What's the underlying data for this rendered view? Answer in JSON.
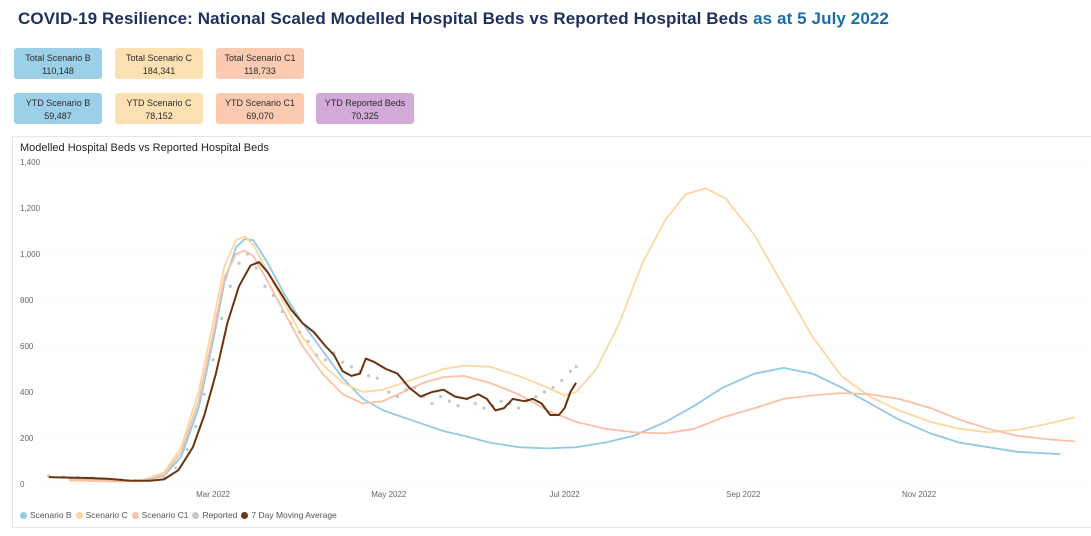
{
  "header": {
    "title_main": "COVID-19 Resilience: National Scaled Modelled Hospital Beds vs Reported Hospital Beds",
    "title_date": "as at 5 July 2022"
  },
  "cards": [
    {
      "label": "Total Scenario B",
      "value": "110,148",
      "color": "#9ccfe8"
    },
    {
      "label": "Total Scenario C",
      "value": "184,341",
      "color": "#fde1b3"
    },
    {
      "label": "Total Scenario C1",
      "value": "118,733",
      "color": "#fbcbb1"
    },
    {
      "label": "YTD Scenario B",
      "value": "59,487",
      "color": "#9ccfe8"
    },
    {
      "label": "YTD Scenario C",
      "value": "78,152",
      "color": "#fde1b3"
    },
    {
      "label": "YTD Scenario C1",
      "value": "69,070",
      "color": "#fbcbb1"
    },
    {
      "label": "YTD Reported Beds",
      "value": "70,325",
      "color": "#d3a9d8"
    }
  ],
  "chart_data": {
    "type": "line",
    "title": "Modelled Hospital Beds vs Reported Hospital Beds",
    "xlabel": "",
    "ylabel": "",
    "xlim": [
      "2022-01-01",
      "2022-12-31"
    ],
    "ylim": [
      0,
      1400
    ],
    "y_ticks": [
      0,
      200,
      400,
      600,
      800,
      1000,
      1200,
      1400
    ],
    "x_ticks": [
      {
        "date": "2022-03-01",
        "label": "Mar 2022"
      },
      {
        "date": "2022-05-01",
        "label": "May 2022"
      },
      {
        "date": "2022-07-01",
        "label": "Jul 2022"
      },
      {
        "date": "2022-09-01",
        "label": "Sep 2022"
      },
      {
        "date": "2022-11-01",
        "label": "Nov 2022"
      }
    ],
    "grid": true,
    "legend_position": "bottom-left",
    "series": [
      {
        "name": "Scenario B",
        "color": "#93c9e3",
        "style": "line",
        "points": [
          [
            "2022-01-10",
            20
          ],
          [
            "2022-01-20",
            18
          ],
          [
            "2022-01-28",
            12
          ],
          [
            "2022-02-05",
            15
          ],
          [
            "2022-02-12",
            35
          ],
          [
            "2022-02-18",
            120
          ],
          [
            "2022-02-24",
            330
          ],
          [
            "2022-03-01",
            620
          ],
          [
            "2022-03-05",
            880
          ],
          [
            "2022-03-09",
            1030
          ],
          [
            "2022-03-12",
            1065
          ],
          [
            "2022-03-15",
            1060
          ],
          [
            "2022-03-20",
            960
          ],
          [
            "2022-03-26",
            820
          ],
          [
            "2022-04-01",
            700
          ],
          [
            "2022-04-08",
            580
          ],
          [
            "2022-04-15",
            460
          ],
          [
            "2022-04-22",
            370
          ],
          [
            "2022-04-29",
            320
          ],
          [
            "2022-05-06",
            290
          ],
          [
            "2022-05-13",
            260
          ],
          [
            "2022-05-20",
            230
          ],
          [
            "2022-05-27",
            210
          ],
          [
            "2022-06-05",
            180
          ],
          [
            "2022-06-15",
            160
          ],
          [
            "2022-06-25",
            155
          ],
          [
            "2022-07-05",
            160
          ],
          [
            "2022-07-15",
            180
          ],
          [
            "2022-07-25",
            210
          ],
          [
            "2022-08-05",
            270
          ],
          [
            "2022-08-15",
            340
          ],
          [
            "2022-08-25",
            420
          ],
          [
            "2022-09-05",
            480
          ],
          [
            "2022-09-15",
            505
          ],
          [
            "2022-09-25",
            480
          ],
          [
            "2022-10-05",
            420
          ],
          [
            "2022-10-15",
            350
          ],
          [
            "2022-10-25",
            280
          ],
          [
            "2022-11-05",
            220
          ],
          [
            "2022-11-15",
            180
          ],
          [
            "2022-11-25",
            160
          ],
          [
            "2022-12-05",
            140
          ],
          [
            "2022-12-20",
            130
          ]
        ]
      },
      {
        "name": "Scenario C",
        "color": "#fdd7a0",
        "style": "line",
        "points": [
          [
            "2022-01-10",
            15
          ],
          [
            "2022-01-20",
            12
          ],
          [
            "2022-01-28",
            10
          ],
          [
            "2022-02-05",
            18
          ],
          [
            "2022-02-12",
            50
          ],
          [
            "2022-02-18",
            160
          ],
          [
            "2022-02-24",
            400
          ],
          [
            "2022-03-01",
            700
          ],
          [
            "2022-03-05",
            950
          ],
          [
            "2022-03-09",
            1060
          ],
          [
            "2022-03-12",
            1075
          ],
          [
            "2022-03-15",
            1040
          ],
          [
            "2022-03-20",
            920
          ],
          [
            "2022-03-26",
            780
          ],
          [
            "2022-04-01",
            640
          ],
          [
            "2022-04-08",
            520
          ],
          [
            "2022-04-15",
            440
          ],
          [
            "2022-04-22",
            400
          ],
          [
            "2022-04-29",
            410
          ],
          [
            "2022-05-06",
            440
          ],
          [
            "2022-05-13",
            470
          ],
          [
            "2022-05-20",
            500
          ],
          [
            "2022-05-27",
            515
          ],
          [
            "2022-06-05",
            510
          ],
          [
            "2022-06-15",
            470
          ],
          [
            "2022-06-25",
            420
          ],
          [
            "2022-07-01",
            385
          ],
          [
            "2022-07-05",
            400
          ],
          [
            "2022-07-12",
            500
          ],
          [
            "2022-07-20",
            700
          ],
          [
            "2022-07-28",
            960
          ],
          [
            "2022-08-05",
            1150
          ],
          [
            "2022-08-12",
            1260
          ],
          [
            "2022-08-19",
            1285
          ],
          [
            "2022-08-26",
            1240
          ],
          [
            "2022-09-05",
            1080
          ],
          [
            "2022-09-15",
            860
          ],
          [
            "2022-09-25",
            640
          ],
          [
            "2022-10-05",
            470
          ],
          [
            "2022-10-15",
            380
          ],
          [
            "2022-10-25",
            320
          ],
          [
            "2022-11-05",
            270
          ],
          [
            "2022-11-15",
            240
          ],
          [
            "2022-11-25",
            225
          ],
          [
            "2022-12-05",
            235
          ],
          [
            "2022-12-15",
            260
          ],
          [
            "2022-12-25",
            290
          ]
        ]
      },
      {
        "name": "Scenario C1",
        "color": "#f9c1a6",
        "style": "line",
        "points": [
          [
            "2022-01-10",
            18
          ],
          [
            "2022-01-20",
            15
          ],
          [
            "2022-01-28",
            11
          ],
          [
            "2022-02-05",
            16
          ],
          [
            "2022-02-12",
            40
          ],
          [
            "2022-02-18",
            140
          ],
          [
            "2022-02-24",
            360
          ],
          [
            "2022-03-01",
            650
          ],
          [
            "2022-03-05",
            900
          ],
          [
            "2022-03-09",
            1000
          ],
          [
            "2022-03-12",
            1015
          ],
          [
            "2022-03-15",
            990
          ],
          [
            "2022-03-20",
            880
          ],
          [
            "2022-03-26",
            740
          ],
          [
            "2022-04-01",
            600
          ],
          [
            "2022-04-08",
            480
          ],
          [
            "2022-04-15",
            390
          ],
          [
            "2022-04-22",
            350
          ],
          [
            "2022-04-29",
            360
          ],
          [
            "2022-05-06",
            400
          ],
          [
            "2022-05-13",
            440
          ],
          [
            "2022-05-20",
            465
          ],
          [
            "2022-05-27",
            470
          ],
          [
            "2022-06-05",
            440
          ],
          [
            "2022-06-15",
            390
          ],
          [
            "2022-06-25",
            320
          ],
          [
            "2022-07-05",
            270
          ],
          [
            "2022-07-15",
            240
          ],
          [
            "2022-07-25",
            225
          ],
          [
            "2022-08-05",
            220
          ],
          [
            "2022-08-15",
            240
          ],
          [
            "2022-08-25",
            290
          ],
          [
            "2022-09-05",
            330
          ],
          [
            "2022-09-15",
            370
          ],
          [
            "2022-09-25",
            385
          ],
          [
            "2022-10-05",
            395
          ],
          [
            "2022-10-15",
            390
          ],
          [
            "2022-10-25",
            370
          ],
          [
            "2022-11-05",
            330
          ],
          [
            "2022-11-15",
            280
          ],
          [
            "2022-11-25",
            240
          ],
          [
            "2022-12-05",
            210
          ],
          [
            "2022-12-15",
            195
          ],
          [
            "2022-12-25",
            185
          ]
        ]
      },
      {
        "name": "Reported",
        "color": "#c6c6c6",
        "style": "dots",
        "points": [
          [
            "2022-01-03",
            35
          ],
          [
            "2022-01-08",
            30
          ],
          [
            "2022-01-13",
            28
          ],
          [
            "2022-01-18",
            26
          ],
          [
            "2022-01-23",
            22
          ],
          [
            "2022-01-28",
            18
          ],
          [
            "2022-02-02",
            15
          ],
          [
            "2022-02-07",
            18
          ],
          [
            "2022-02-12",
            30
          ],
          [
            "2022-02-16",
            70
          ],
          [
            "2022-02-20",
            150
          ],
          [
            "2022-02-23",
            250
          ],
          [
            "2022-02-26",
            390
          ],
          [
            "2022-03-01",
            540
          ],
          [
            "2022-03-04",
            720
          ],
          [
            "2022-03-07",
            860
          ],
          [
            "2022-03-10",
            960
          ],
          [
            "2022-03-13",
            1000
          ],
          [
            "2022-03-16",
            940
          ],
          [
            "2022-03-19",
            860
          ],
          [
            "2022-03-22",
            820
          ],
          [
            "2022-03-25",
            750
          ],
          [
            "2022-03-28",
            700
          ],
          [
            "2022-03-31",
            660
          ],
          [
            "2022-04-03",
            620
          ],
          [
            "2022-04-06",
            560
          ],
          [
            "2022-04-09",
            540
          ],
          [
            "2022-04-12",
            570
          ],
          [
            "2022-04-15",
            530
          ],
          [
            "2022-04-18",
            510
          ],
          [
            "2022-04-21",
            490
          ],
          [
            "2022-04-24",
            470
          ],
          [
            "2022-04-27",
            460
          ],
          [
            "2022-05-01",
            400
          ],
          [
            "2022-05-04",
            380
          ],
          [
            "2022-05-07",
            410
          ],
          [
            "2022-05-10",
            420
          ],
          [
            "2022-05-13",
            380
          ],
          [
            "2022-05-16",
            350
          ],
          [
            "2022-05-19",
            380
          ],
          [
            "2022-05-22",
            360
          ],
          [
            "2022-05-25",
            340
          ],
          [
            "2022-05-28",
            370
          ],
          [
            "2022-05-31",
            350
          ],
          [
            "2022-06-03",
            330
          ],
          [
            "2022-06-06",
            340
          ],
          [
            "2022-06-09",
            360
          ],
          [
            "2022-06-12",
            350
          ],
          [
            "2022-06-15",
            330
          ],
          [
            "2022-06-18",
            360
          ],
          [
            "2022-06-21",
            380
          ],
          [
            "2022-06-24",
            400
          ],
          [
            "2022-06-27",
            420
          ],
          [
            "2022-06-30",
            450
          ],
          [
            "2022-07-03",
            490
          ],
          [
            "2022-07-05",
            510
          ]
        ]
      },
      {
        "name": "7 Day Moving Average",
        "color": "#6b3410",
        "style": "thick-line",
        "points": [
          [
            "2022-01-03",
            30
          ],
          [
            "2022-01-10",
            28
          ],
          [
            "2022-01-17",
            26
          ],
          [
            "2022-01-24",
            22
          ],
          [
            "2022-01-31",
            15
          ],
          [
            "2022-02-07",
            14
          ],
          [
            "2022-02-12",
            20
          ],
          [
            "2022-02-17",
            60
          ],
          [
            "2022-02-22",
            160
          ],
          [
            "2022-02-26",
            300
          ],
          [
            "2022-03-02",
            480
          ],
          [
            "2022-03-06",
            700
          ],
          [
            "2022-03-10",
            860
          ],
          [
            "2022-03-14",
            950
          ],
          [
            "2022-03-17",
            965
          ],
          [
            "2022-03-20",
            920
          ],
          [
            "2022-03-24",
            840
          ],
          [
            "2022-03-28",
            760
          ],
          [
            "2022-04-01",
            700
          ],
          [
            "2022-04-05",
            660
          ],
          [
            "2022-04-09",
            600
          ],
          [
            "2022-04-12",
            560
          ],
          [
            "2022-04-15",
            490
          ],
          [
            "2022-04-18",
            470
          ],
          [
            "2022-04-21",
            480
          ],
          [
            "2022-04-23",
            545
          ],
          [
            "2022-04-26",
            530
          ],
          [
            "2022-04-30",
            500
          ],
          [
            "2022-05-04",
            480
          ],
          [
            "2022-05-08",
            420
          ],
          [
            "2022-05-12",
            380
          ],
          [
            "2022-05-16",
            400
          ],
          [
            "2022-05-20",
            410
          ],
          [
            "2022-05-24",
            380
          ],
          [
            "2022-05-28",
            370
          ],
          [
            "2022-06-01",
            390
          ],
          [
            "2022-06-04",
            370
          ],
          [
            "2022-06-07",
            320
          ],
          [
            "2022-06-10",
            330
          ],
          [
            "2022-06-13",
            370
          ],
          [
            "2022-06-17",
            360
          ],
          [
            "2022-06-20",
            370
          ],
          [
            "2022-06-23",
            350
          ],
          [
            "2022-06-26",
            300
          ],
          [
            "2022-06-29",
            300
          ],
          [
            "2022-07-01",
            330
          ],
          [
            "2022-07-03",
            400
          ],
          [
            "2022-07-05",
            440
          ]
        ]
      }
    ]
  }
}
